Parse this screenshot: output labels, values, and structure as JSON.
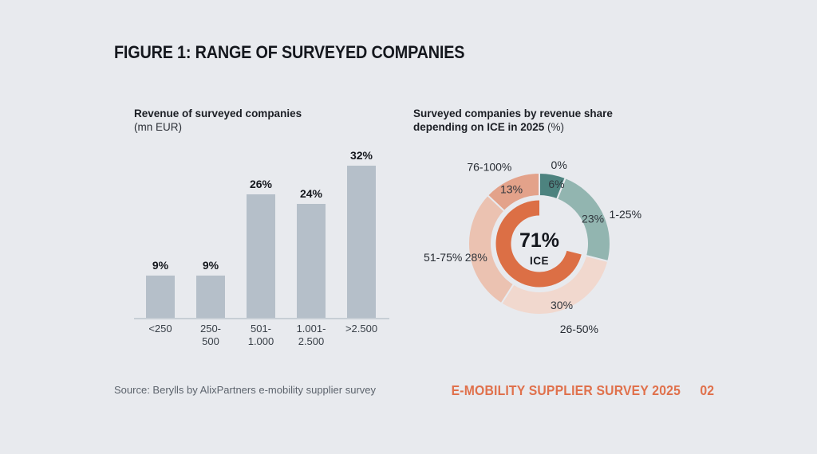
{
  "page": {
    "title": "FIGURE 1: RANGE OF SURVEYED COMPANIES",
    "source": "Source: Berylls by AlixPartners e-mobility supplier survey",
    "footer": {
      "label": "E-MOBILITY SUPPLIER SURVEY 2025",
      "page_number": "02"
    }
  },
  "colors": {
    "background": "#e8eaee",
    "bar_fill": "#b5bfc9",
    "axis": "#c7ced5",
    "accent_orange": "#dc6f45",
    "footer_orange": "#e0714c",
    "text_dark": "#14171d",
    "text_gray": "#5d646d"
  },
  "chart_data": [
    {
      "type": "bar",
      "title": "Revenue of surveyed companies",
      "subtitle": "(mn EUR)",
      "categories": [
        "<250",
        "250-500",
        "501-1.000",
        "1.001-2.500",
        ">2.500"
      ],
      "categories_lines": [
        [
          "<250"
        ],
        [
          "250-",
          "500"
        ],
        [
          "501-",
          "1.000"
        ],
        [
          "1.001-",
          "2.500"
        ],
        [
          ">2.500"
        ]
      ],
      "values": [
        9,
        9,
        26,
        24,
        32
      ],
      "value_labels": [
        "9%",
        "9%",
        "26%",
        "24%",
        "32%"
      ],
      "unit": "%",
      "ylim": [
        0,
        32
      ],
      "grid": false,
      "bar_color": "#b5bfc9"
    },
    {
      "type": "donut",
      "title_line1": "Surveyed companies by revenue share",
      "title_line2_bold": "depending on ICE in 2025",
      "title_line2_regular": "(%)",
      "segments": [
        {
          "label": "0%",
          "value": 6,
          "value_label": "6%",
          "color": "#4d837f",
          "value_color": "#d7e2df"
        },
        {
          "label": "1-25%",
          "value": 23,
          "value_label": "23%",
          "color": "#92b5b0"
        },
        {
          "label": "26-50%",
          "value": 30,
          "value_label": "30%",
          "color": "#f1d8ce"
        },
        {
          "label": "51-75%",
          "value": 28,
          "value_label": "28%",
          "color": "#ebc2b1"
        },
        {
          "label": "76-100%",
          "value": 13,
          "value_label": "13%",
          "color": "#e3a28a"
        }
      ],
      "center": {
        "value": "71%",
        "label": "ICE",
        "gauge_percent": 71,
        "gauge_color": "#dc6f45"
      }
    }
  ]
}
